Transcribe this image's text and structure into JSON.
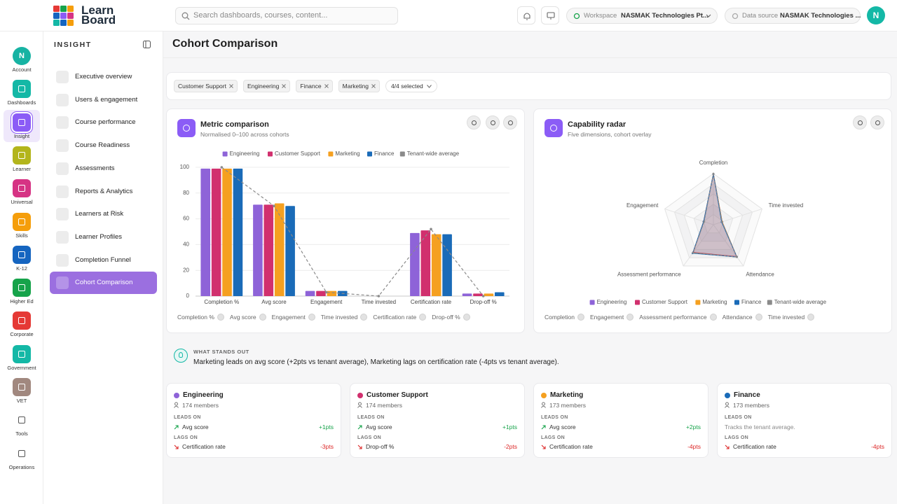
{
  "topbar": {
    "logo": [
      "Learn",
      "Board"
    ],
    "search_placeholder": "Search dashboards, courses, content...",
    "workspace_label": "Workspace",
    "workspace_value": "NASMAK Technologies Pt...",
    "datasource_label": "Data source",
    "datasource_value": "NASMAK Technologies ...",
    "avatar": "N"
  },
  "rail": [
    {
      "label": "Account",
      "icon_text": "N",
      "color": "#17b3a3"
    },
    {
      "label": "Dashboards",
      "color": "#14b8a6"
    },
    {
      "label": "Insight",
      "color": "#8b5cf6",
      "active": true
    },
    {
      "label": "Learner",
      "color": "#b3b51c"
    },
    {
      "label": "Universal",
      "color": "#d63384"
    },
    {
      "label": "Skills",
      "color": "#f59e0b"
    },
    {
      "label": "K-12",
      "color": "#1565c0"
    },
    {
      "label": "Higher Ed",
      "color": "#16a34a"
    },
    {
      "label": "Corporate",
      "color": "#e53935"
    },
    {
      "label": "Government",
      "color": "#14b8a6"
    },
    {
      "label": "VET",
      "color": "#a1887f"
    },
    {
      "label": "Tools",
      "color": null
    },
    {
      "label": "Operations",
      "color": null
    }
  ],
  "nav": {
    "title": "INSIGHT",
    "items": [
      "Executive overview",
      "Users & engagement",
      "Course performance",
      "Course Readiness",
      "Assessments",
      "Reports & Analytics",
      "Learners at Risk",
      "Learner Profiles",
      "Completion Funnel",
      "Cohort Comparison"
    ],
    "active": 9
  },
  "page_title": "Cohort Comparison",
  "filters": {
    "chips": [
      "Customer Support",
      "Engineering",
      "Finance",
      "Marketing"
    ],
    "selected": "4/4 selected"
  },
  "chart_data": [
    {
      "type": "bar",
      "title": "Metric comparison",
      "subtitle": "Normalised 0–100 across cohorts",
      "categories": [
        "Completion %",
        "Avg score",
        "Engagement",
        "Time invested",
        "Certification rate",
        "Drop-off %"
      ],
      "series": [
        {
          "name": "Engineering",
          "color": "#8e63d8",
          "values": [
            99,
            71,
            4,
            0,
            49,
            2
          ]
        },
        {
          "name": "Customer Support",
          "color": "#d1306e",
          "values": [
            99,
            71,
            4,
            0,
            51,
            2
          ]
        },
        {
          "name": "Marketing",
          "color": "#f5a020",
          "values": [
            99,
            72,
            4,
            0,
            48,
            2
          ]
        },
        {
          "name": "Finance",
          "color": "#1a6bb8",
          "values": [
            99,
            70,
            4,
            0,
            48,
            3
          ]
        },
        {
          "name": "Tenant-wide average",
          "color": "#8a8a8a",
          "type": "line",
          "dashed": true,
          "values": [
            100,
            70,
            3,
            0,
            52,
            0
          ]
        }
      ],
      "ylim": [
        0,
        100
      ],
      "yticks": [
        0,
        20,
        40,
        60,
        80,
        100
      ],
      "grid": true,
      "legend": "top",
      "metric_toggles": [
        "Completion %",
        "Avg score",
        "Engagement",
        "Time invested",
        "Certification rate",
        "Drop-off %"
      ]
    },
    {
      "type": "radar",
      "title": "Capability radar",
      "subtitle": "Five dimensions, cohort overlay",
      "axes": [
        "Completion",
        "Time invested",
        "Attendance",
        "Assessment performance",
        "Engagement"
      ],
      "series": [
        {
          "name": "Engineering",
          "color": "#8e63d8",
          "values": [
            99,
            18,
            78,
            68,
            20
          ]
        },
        {
          "name": "Customer Support",
          "color": "#d1306e",
          "values": [
            99,
            18,
            77,
            67,
            20
          ]
        },
        {
          "name": "Marketing",
          "color": "#f5a020",
          "values": [
            99,
            18,
            78,
            68,
            20
          ]
        },
        {
          "name": "Finance",
          "color": "#1a6bb8",
          "values": [
            99,
            17,
            78,
            69,
            20
          ]
        },
        {
          "name": "Tenant-wide average",
          "color": "#8a8a8a",
          "dashed": true,
          "values": [
            100,
            18,
            78,
            68,
            19
          ]
        }
      ],
      "rlim": [
        0,
        100
      ],
      "rticks": [
        20,
        40,
        60,
        80,
        100
      ],
      "legend": "bottom",
      "metric_toggles": [
        "Completion",
        "Engagement",
        "Assessment performance",
        "Attendance",
        "Time invested"
      ]
    }
  ],
  "insight": {
    "heading": "WHAT STANDS OUT",
    "text": "Marketing leads on avg score (+2pts vs tenant average), Marketing lags on certification rate (-4pts vs tenant average)."
  },
  "cohorts": [
    {
      "name": "Engineering",
      "color": "#8e63d8",
      "members": "174 members",
      "leads_label": "LEADS ON",
      "leads": {
        "metric": "Avg score",
        "delta": "+1pts"
      },
      "lags_label": "LAGS ON",
      "lags": {
        "metric": "Certification rate",
        "delta": "-3pts"
      }
    },
    {
      "name": "Customer Support",
      "color": "#d1306e",
      "members": "174 members",
      "leads_label": "LEADS ON",
      "leads": {
        "metric": "Avg score",
        "delta": "+1pts"
      },
      "lags_label": "LAGS ON",
      "lags": {
        "metric": "Drop-off %",
        "delta": "-2pts"
      }
    },
    {
      "name": "Marketing",
      "color": "#f5a020",
      "members": "173 members",
      "leads_label": "LEADS ON",
      "leads": {
        "metric": "Avg score",
        "delta": "+2pts"
      },
      "lags_label": "LAGS ON",
      "lags": {
        "metric": "Certification rate",
        "delta": "-4pts"
      }
    },
    {
      "name": "Finance",
      "color": "#1a6bb8",
      "members": "173 members",
      "leads_label": "LEADS ON",
      "leads_note": "Tracks the tenant average.",
      "lags_label": "LAGS ON",
      "lags": {
        "metric": "Certification rate",
        "delta": "-4pts"
      }
    }
  ]
}
